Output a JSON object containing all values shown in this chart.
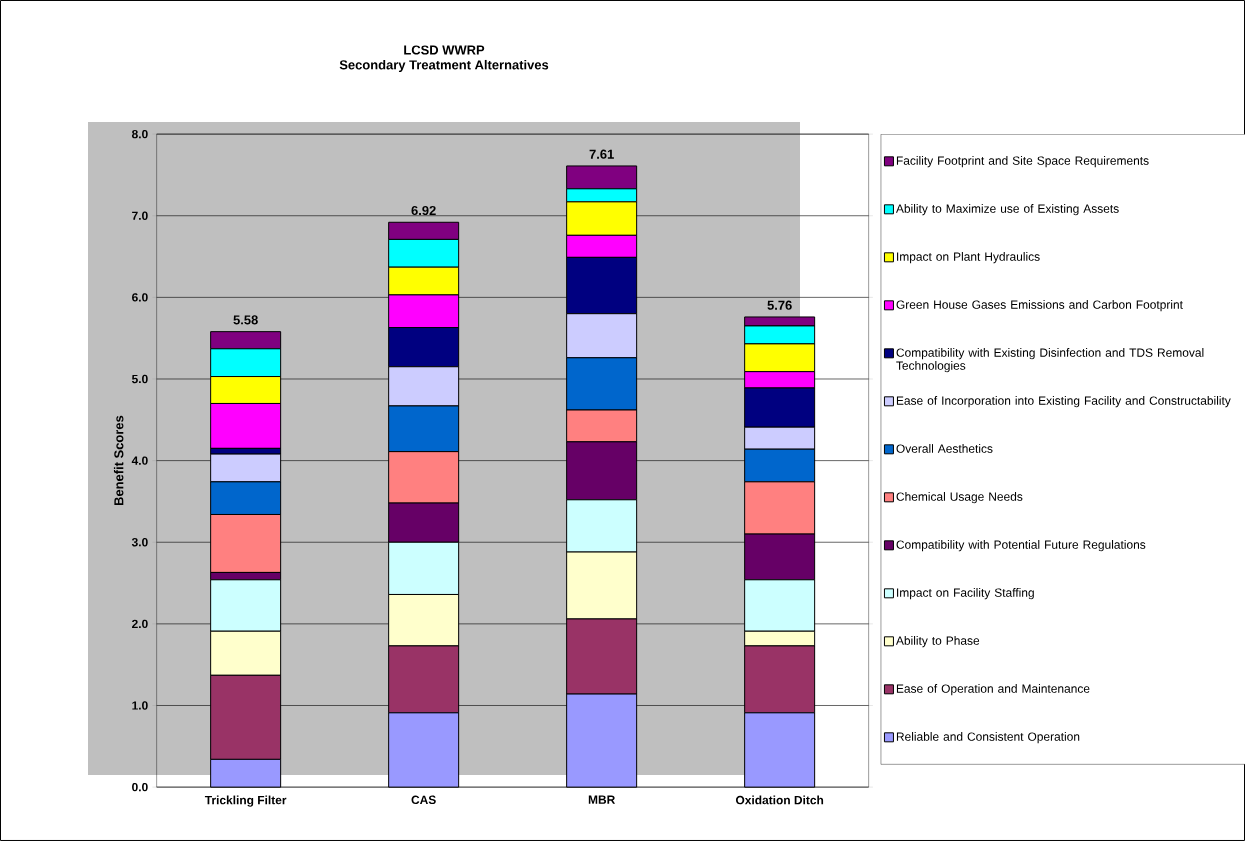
{
  "chart_data": {
    "type": "bar",
    "stacked": true,
    "title": "LCSD WWRP",
    "subtitle": "Secondary Treatment Alternatives",
    "ylabel": "Benefit Scores",
    "categories": [
      "Trickling Filter",
      "CAS",
      "MBR",
      "Oxidation Ditch"
    ],
    "series": [
      {
        "name": "Reliable and Consistent Operation",
        "color": "#9999ff",
        "values": [
          0.34,
          0.91,
          1.14,
          0.91
        ]
      },
      {
        "name": "Ease of Operation and Maintenance",
        "color": "#993366",
        "values": [
          1.03,
          0.82,
          0.92,
          0.82
        ]
      },
      {
        "name": "Ability to Phase",
        "color": "#ffffcc",
        "values": [
          0.54,
          0.63,
          0.82,
          0.18
        ]
      },
      {
        "name": "Impact on Facility Staffing",
        "color": "#ccffff",
        "values": [
          0.63,
          0.64,
          0.64,
          0.63
        ]
      },
      {
        "name": "Compatibility with Potential Future Regulations",
        "color": "#660066",
        "values": [
          0.09,
          0.48,
          0.71,
          0.56
        ]
      },
      {
        "name": "Chemical Usage Needs",
        "color": "#ff8080",
        "values": [
          0.71,
          0.63,
          0.39,
          0.64
        ]
      },
      {
        "name": "Overall Aesthetics",
        "color": "#0066cc",
        "values": [
          0.4,
          0.56,
          0.64,
          0.4
        ]
      },
      {
        "name": "Ease of Incorporation into Existing Facility and Constructability",
        "color": "#ccccff",
        "values": [
          0.34,
          0.48,
          0.54,
          0.27
        ]
      },
      {
        "name": "Compatibility with Existing Disinfection and TDS Removal Technologies",
        "color": "#000080",
        "values": [
          0.07,
          0.48,
          0.69,
          0.48
        ]
      },
      {
        "name": "Green House Gases Emissions and Carbon Footprint",
        "color": "#ff00ff",
        "values": [
          0.55,
          0.4,
          0.27,
          0.2
        ]
      },
      {
        "name": "Impact on Plant Hydraulics",
        "color": "#ffff00",
        "values": [
          0.33,
          0.34,
          0.41,
          0.34
        ]
      },
      {
        "name": "Ability to Maximize use of Existing Assets",
        "color": "#00ffff",
        "values": [
          0.34,
          0.34,
          0.16,
          0.22
        ]
      },
      {
        "name": "Facility Footprint and Site Space Requirements",
        "color": "#800080",
        "values": [
          0.21,
          0.21,
          0.28,
          0.11
        ]
      }
    ],
    "totals": [
      "5.58",
      "6.92",
      "7.61",
      "5.76"
    ],
    "ylim": [
      0,
      8
    ],
    "yticks": [
      {
        "value": 0,
        "label": "0.0"
      },
      {
        "value": 1,
        "label": "1.0"
      },
      {
        "value": 2,
        "label": "2.0"
      },
      {
        "value": 3,
        "label": "3.0"
      },
      {
        "value": 4,
        "label": "4.0"
      },
      {
        "value": 5,
        "label": "5.0"
      },
      {
        "value": 6,
        "label": "6.0"
      },
      {
        "value": 7,
        "label": "7.0"
      },
      {
        "value": 8,
        "label": "8.0"
      }
    ],
    "grid": "y",
    "legend": "right"
  }
}
